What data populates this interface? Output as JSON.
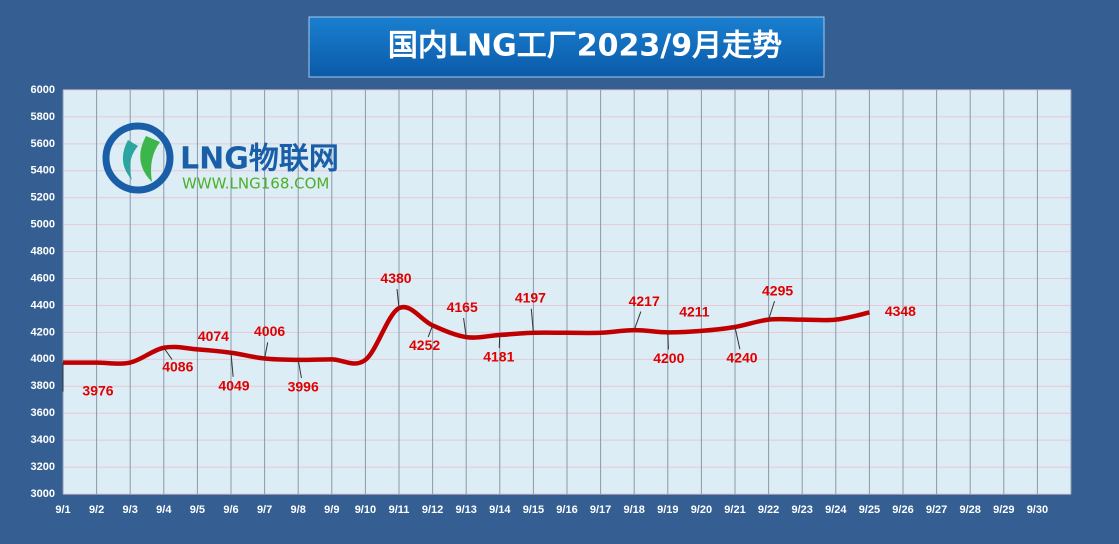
{
  "chart_data": {
    "type": "line",
    "title": "国内LNG工厂2023/9月走势",
    "categories": [
      "9/1",
      "9/2",
      "9/3",
      "9/4",
      "9/5",
      "9/6",
      "9/7",
      "9/8",
      "9/9",
      "9/10",
      "9/11",
      "9/12",
      "9/13",
      "9/14",
      "9/15",
      "9/16",
      "9/17",
      "9/18",
      "9/19",
      "9/20",
      "9/21",
      "9/22",
      "9/23",
      "9/24",
      "9/25",
      "9/26",
      "9/27",
      "9/28",
      "9/29",
      "9/30"
    ],
    "series": [
      {
        "name": "LNG工厂",
        "color": "#c00000",
        "values": [
          3976,
          3976,
          3976,
          4086,
          4074,
          4049,
          4006,
          3996,
          4000,
          3996,
          4380,
          4252,
          4165,
          4181,
          4197,
          4197,
          4197,
          4217,
          4200,
          4211,
          4240,
          4295,
          4295,
          4295,
          4348,
          null,
          null,
          null,
          null,
          null
        ],
        "value_labels": [
          "3976",
          null,
          null,
          "4086",
          "4074",
          "4049",
          "4006",
          "3996",
          null,
          null,
          "4380",
          "4252",
          "4165",
          "4181",
          "4197",
          null,
          null,
          "4217",
          "4200",
          "4211",
          "4240",
          "4295",
          null,
          null,
          "4348",
          null,
          null,
          null,
          null,
          null
        ]
      }
    ],
    "ylim": [
      3000,
      6000
    ],
    "yticks": [
      3000,
      3200,
      3400,
      3600,
      3800,
      4000,
      4200,
      4400,
      4600,
      4800,
      5000,
      5200,
      5400,
      5600,
      5800,
      6000
    ],
    "grid": true
  },
  "logo": {
    "name": "LNG物联网",
    "url": "WWW.LNG168.COM"
  }
}
